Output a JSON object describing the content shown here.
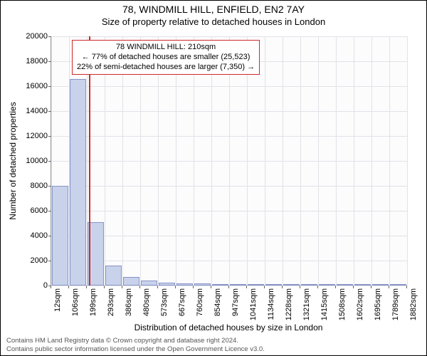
{
  "title": "78, WINDMILL HILL, ENFIELD, EN2 7AY",
  "subtitle": "Size of property relative to detached houses in London",
  "chart": {
    "type": "histogram",
    "ylabel": "Number of detached properties",
    "xlabel": "Distribution of detached houses by size in London",
    "background_color": "#fcfcfd",
    "grid_color": "#e2e2e8",
    "axis_color": "#999999",
    "bar_fill": "#c8d2eb",
    "bar_stroke": "#8894c8",
    "ref_line_color": "#cc2b2b",
    "ylim": [
      0,
      20000
    ],
    "ytick_step": 2000,
    "yticks": [
      0,
      2000,
      4000,
      6000,
      8000,
      10000,
      12000,
      14000,
      16000,
      18000,
      20000
    ],
    "bar_width": 0.9,
    "label_fontsize": 12,
    "tick_fontsize": 11,
    "xticks": [
      "12sqm",
      "106sqm",
      "199sqm",
      "293sqm",
      "386sqm",
      "480sqm",
      "573sqm",
      "667sqm",
      "760sqm",
      "854sqm",
      "947sqm",
      "1041sqm",
      "1134sqm",
      "1228sqm",
      "1321sqm",
      "1415sqm",
      "1508sqm",
      "1602sqm",
      "1695sqm",
      "1789sqm",
      "1882sqm"
    ],
    "values": [
      8000,
      16600,
      5100,
      1600,
      700,
      400,
      250,
      200,
      150,
      100,
      80,
      70,
      60,
      50,
      40,
      30,
      25,
      20,
      15,
      10
    ],
    "ref_line_category_index": 2,
    "ref_line_offset_within": 0.12,
    "annotation": {
      "line1": "78 WINDMILL HILL: 210sqm",
      "line2": "← 77% of detached houses are smaller (25,523)",
      "line3": "22% of semi-detached houses are larger (7,350) →",
      "border_color": "#cc2b2b"
    }
  },
  "footer": {
    "line1": "Contains HM Land Registry data © Crown copyright and database right 2024.",
    "line2": "Contains public sector information licensed under the Open Government Licence v3.0."
  }
}
